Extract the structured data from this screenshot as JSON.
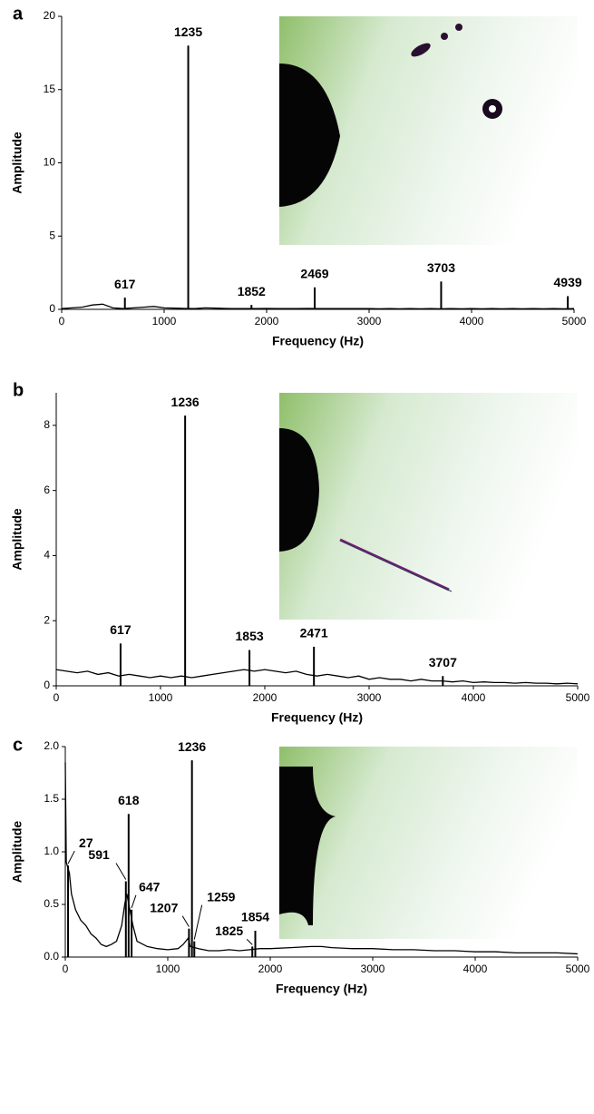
{
  "chart_data": [
    {
      "type": "stem",
      "panel": "a",
      "xlabel": "Frequency (Hz)",
      "ylabel": "Amplitude",
      "xlim": [
        0,
        5000
      ],
      "xticks": [
        0,
        1000,
        2000,
        3000,
        4000,
        5000
      ],
      "ylim": [
        0,
        20
      ],
      "yticks": [
        0,
        5,
        10,
        15,
        20
      ],
      "color": "#000000",
      "spectrum": {
        "x": [
          0,
          100,
          200,
          300,
          400,
          500,
          600,
          700,
          800,
          900,
          1000,
          1100,
          1200,
          1300,
          1400,
          1500,
          1600,
          1700,
          1800,
          1900,
          2000,
          2100,
          2200,
          2300,
          2400,
          2500,
          2600,
          2700,
          2800,
          2900,
          3000,
          3100,
          3200,
          3300,
          3400,
          3500,
          3600,
          3700,
          3800,
          3900,
          4000,
          4100,
          4200,
          4300,
          4400,
          4500,
          4600,
          4700,
          4800,
          4900,
          5000
        ],
        "values": [
          0.05,
          0.1,
          0.15,
          0.3,
          0.35,
          0.1,
          0.05,
          0.1,
          0.15,
          0.2,
          0.1,
          0.08,
          0.06,
          0.05,
          0.1,
          0.08,
          0.06,
          0.05,
          0.05,
          0.05,
          0.06,
          0.05,
          0.05,
          0.05,
          0.06,
          0.05,
          0.05,
          0.05,
          0.05,
          0.05,
          0.05,
          0.04,
          0.05,
          0.04,
          0.05,
          0.04,
          0.05,
          0.04,
          0.05,
          0.04,
          0.05,
          0.04,
          0.05,
          0.04,
          0.05,
          0.04,
          0.05,
          0.04,
          0.05,
          0.04,
          0.05
        ]
      },
      "peaks": [
        {
          "x": 617,
          "amplitude": 0.8
        },
        {
          "x": 1235,
          "amplitude": 18
        },
        {
          "x": 1852,
          "amplitude": 0.3
        },
        {
          "x": 2469,
          "amplitude": 1.5
        },
        {
          "x": 3703,
          "amplitude": 1.9
        },
        {
          "x": 4939,
          "amplitude": 0.9
        }
      ]
    },
    {
      "type": "stem",
      "panel": "b",
      "xlabel": "Frequency (Hz)",
      "ylabel": "Amplitude",
      "xlim": [
        0,
        5000
      ],
      "xticks": [
        0,
        1000,
        2000,
        3000,
        4000,
        5000
      ],
      "ylim": [
        0,
        9
      ],
      "yticks": [
        0,
        2,
        4,
        6,
        8
      ],
      "color": "#000000",
      "spectrum": {
        "x": [
          0,
          100,
          200,
          300,
          400,
          500,
          600,
          700,
          800,
          900,
          1000,
          1100,
          1200,
          1300,
          1400,
          1500,
          1600,
          1700,
          1800,
          1900,
          2000,
          2100,
          2200,
          2300,
          2400,
          2500,
          2600,
          2700,
          2800,
          2900,
          3000,
          3100,
          3200,
          3300,
          3400,
          3500,
          3600,
          3700,
          3800,
          3900,
          4000,
          4100,
          4200,
          4300,
          4400,
          4500,
          4600,
          4700,
          4800,
          4900,
          5000
        ],
        "values": [
          0.5,
          0.45,
          0.4,
          0.45,
          0.35,
          0.4,
          0.3,
          0.35,
          0.3,
          0.25,
          0.3,
          0.25,
          0.3,
          0.25,
          0.3,
          0.35,
          0.4,
          0.45,
          0.5,
          0.45,
          0.5,
          0.45,
          0.4,
          0.45,
          0.35,
          0.3,
          0.35,
          0.3,
          0.25,
          0.3,
          0.2,
          0.25,
          0.2,
          0.2,
          0.15,
          0.2,
          0.15,
          0.15,
          0.12,
          0.15,
          0.1,
          0.12,
          0.1,
          0.1,
          0.08,
          0.1,
          0.08,
          0.08,
          0.06,
          0.08,
          0.06
        ]
      },
      "peaks": [
        {
          "x": 617,
          "amplitude": 1.3
        },
        {
          "x": 1236,
          "amplitude": 8.3
        },
        {
          "x": 1853,
          "amplitude": 1.1
        },
        {
          "x": 2471,
          "amplitude": 1.2
        },
        {
          "x": 3707,
          "amplitude": 0.3
        }
      ]
    },
    {
      "type": "stem",
      "panel": "c",
      "xlabel": "Frequency (Hz)",
      "ylabel": "Amplitude",
      "xlim": [
        0,
        5000
      ],
      "xticks": [
        0,
        1000,
        2000,
        3000,
        4000,
        5000
      ],
      "ylim": [
        0,
        2
      ],
      "yticks": [
        {
          "value": 0,
          "label": "0.0"
        },
        {
          "value": 0.5,
          "label": "0.5"
        },
        {
          "value": 1,
          "label": "1.0"
        },
        {
          "value": 1.5,
          "label": "1.5"
        },
        {
          "value": 2,
          "label": "2.0"
        }
      ],
      "color": "#000000",
      "spectrum": {
        "x": [
          0,
          10,
          40,
          60,
          100,
          150,
          200,
          250,
          300,
          350,
          400,
          450,
          500,
          550,
          580,
          600,
          640,
          660,
          700,
          800,
          900,
          1000,
          1100,
          1150,
          1200,
          1220,
          1300,
          1400,
          1500,
          1600,
          1700,
          1800,
          1900,
          2000,
          2200,
          2400,
          2500,
          2600,
          2800,
          3000,
          3200,
          3400,
          3600,
          3800,
          4000,
          4200,
          4400,
          4600,
          4800,
          5000
        ],
        "values": [
          1.85,
          0.9,
          0.8,
          0.6,
          0.45,
          0.35,
          0.3,
          0.22,
          0.18,
          0.12,
          0.1,
          0.12,
          0.15,
          0.3,
          0.5,
          0.6,
          0.4,
          0.3,
          0.15,
          0.1,
          0.08,
          0.07,
          0.08,
          0.12,
          0.18,
          0.1,
          0.08,
          0.06,
          0.06,
          0.07,
          0.06,
          0.07,
          0.08,
          0.08,
          0.09,
          0.1,
          0.1,
          0.09,
          0.08,
          0.08,
          0.07,
          0.07,
          0.06,
          0.06,
          0.05,
          0.05,
          0.04,
          0.04,
          0.04,
          0.03
        ]
      },
      "peaks": [
        {
          "x": 27,
          "amplitude": 0.87
        },
        {
          "x": 591,
          "amplitude": 0.72
        },
        {
          "x": 618,
          "amplitude": 1.36
        },
        {
          "x": 647,
          "amplitude": 0.45
        },
        {
          "x": 1207,
          "amplitude": 0.27
        },
        {
          "x": 1236,
          "amplitude": 1.87
        },
        {
          "x": 1259,
          "amplitude": 0.15
        },
        {
          "x": 1825,
          "amplitude": 0.1
        },
        {
          "x": 1854,
          "amplitude": 0.25
        }
      ]
    }
  ]
}
